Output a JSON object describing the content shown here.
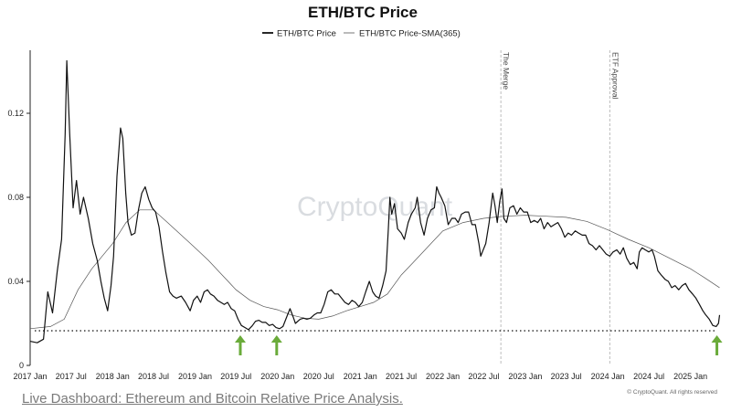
{
  "chart_data": {
    "type": "line",
    "title": "ETH/BTC Price",
    "legend": {
      "placement": "top-center"
    },
    "series": [
      {
        "name": "ETH/BTC Price",
        "style": "solid",
        "points": [
          [
            "2017-01-01",
            0.0115
          ],
          [
            "2017-02-01",
            0.0108
          ],
          [
            "2017-03-01",
            0.0125
          ],
          [
            "2017-03-20",
            0.035
          ],
          [
            "2017-04-10",
            0.025
          ],
          [
            "2017-05-01",
            0.045
          ],
          [
            "2017-05-20",
            0.06
          ],
          [
            "2017-06-05",
            0.11
          ],
          [
            "2017-06-12",
            0.145
          ],
          [
            "2017-06-25",
            0.11
          ],
          [
            "2017-07-10",
            0.075
          ],
          [
            "2017-07-25",
            0.088
          ],
          [
            "2017-08-10",
            0.072
          ],
          [
            "2017-08-25",
            0.08
          ],
          [
            "2017-09-15",
            0.07
          ],
          [
            "2017-10-05",
            0.058
          ],
          [
            "2017-10-25",
            0.05
          ],
          [
            "2017-11-10",
            0.04
          ],
          [
            "2017-11-25",
            0.032
          ],
          [
            "2017-12-10",
            0.026
          ],
          [
            "2017-12-25",
            0.038
          ],
          [
            "2018-01-05",
            0.052
          ],
          [
            "2018-01-20",
            0.09
          ],
          [
            "2018-02-05",
            0.113
          ],
          [
            "2018-02-15",
            0.108
          ],
          [
            "2018-02-28",
            0.082
          ],
          [
            "2018-03-10",
            0.068
          ],
          [
            "2018-03-25",
            0.062
          ],
          [
            "2018-04-10",
            0.063
          ],
          [
            "2018-04-25",
            0.074
          ],
          [
            "2018-05-10",
            0.082
          ],
          [
            "2018-05-25",
            0.085
          ],
          [
            "2018-06-10",
            0.079
          ],
          [
            "2018-06-25",
            0.075
          ],
          [
            "2018-07-10",
            0.073
          ],
          [
            "2018-07-25",
            0.066
          ],
          [
            "2018-08-10",
            0.054
          ],
          [
            "2018-08-25",
            0.044
          ],
          [
            "2018-09-10",
            0.035
          ],
          [
            "2018-09-25",
            0.033
          ],
          [
            "2018-10-10",
            0.032
          ],
          [
            "2018-11-01",
            0.033
          ],
          [
            "2018-11-20",
            0.03
          ],
          [
            "2018-12-10",
            0.026
          ],
          [
            "2018-12-25",
            0.031
          ],
          [
            "2019-01-10",
            0.033
          ],
          [
            "2019-01-25",
            0.03
          ],
          [
            "2019-02-10",
            0.035
          ],
          [
            "2019-02-25",
            0.036
          ],
          [
            "2019-03-10",
            0.034
          ],
          [
            "2019-03-25",
            0.033
          ],
          [
            "2019-04-10",
            0.031
          ],
          [
            "2019-04-25",
            0.03
          ],
          [
            "2019-05-10",
            0.029
          ],
          [
            "2019-05-25",
            0.03
          ],
          [
            "2019-06-10",
            0.027
          ],
          [
            "2019-06-25",
            0.026
          ],
          [
            "2019-07-10",
            0.022
          ],
          [
            "2019-07-25",
            0.019
          ],
          [
            "2019-08-10",
            0.018
          ],
          [
            "2019-08-25",
            0.017
          ],
          [
            "2019-09-10",
            0.0188
          ],
          [
            "2019-09-25",
            0.021
          ],
          [
            "2019-10-10",
            0.0215
          ],
          [
            "2019-10-25",
            0.0205
          ],
          [
            "2019-11-10",
            0.0205
          ],
          [
            "2019-11-25",
            0.019
          ],
          [
            "2019-12-10",
            0.0195
          ],
          [
            "2019-12-25",
            0.018
          ],
          [
            "2020-01-10",
            0.0175
          ],
          [
            "2020-01-25",
            0.0185
          ],
          [
            "2020-02-10",
            0.023
          ],
          [
            "2020-02-25",
            0.027
          ],
          [
            "2020-03-10",
            0.023
          ],
          [
            "2020-03-20",
            0.02
          ],
          [
            "2020-04-10",
            0.022
          ],
          [
            "2020-04-25",
            0.0225
          ],
          [
            "2020-05-10",
            0.022
          ],
          [
            "2020-05-25",
            0.0225
          ],
          [
            "2020-06-10",
            0.024
          ],
          [
            "2020-06-25",
            0.025
          ],
          [
            "2020-07-10",
            0.025
          ],
          [
            "2020-07-25",
            0.029
          ],
          [
            "2020-08-10",
            0.035
          ],
          [
            "2020-08-25",
            0.036
          ],
          [
            "2020-09-10",
            0.034
          ],
          [
            "2020-09-25",
            0.034
          ],
          [
            "2020-10-10",
            0.032
          ],
          [
            "2020-10-25",
            0.03
          ],
          [
            "2020-11-10",
            0.029
          ],
          [
            "2020-11-25",
            0.031
          ],
          [
            "2020-12-10",
            0.03
          ],
          [
            "2020-12-25",
            0.028
          ],
          [
            "2021-01-10",
            0.03
          ],
          [
            "2021-01-25",
            0.035
          ],
          [
            "2021-02-10",
            0.04
          ],
          [
            "2021-02-25",
            0.035
          ],
          [
            "2021-03-10",
            0.033
          ],
          [
            "2021-03-25",
            0.032
          ],
          [
            "2021-04-10",
            0.038
          ],
          [
            "2021-04-25",
            0.045
          ],
          [
            "2021-05-05",
            0.065
          ],
          [
            "2021-05-12",
            0.08
          ],
          [
            "2021-05-20",
            0.072
          ],
          [
            "2021-06-01",
            0.077
          ],
          [
            "2021-06-15",
            0.065
          ],
          [
            "2021-07-01",
            0.063
          ],
          [
            "2021-07-15",
            0.06
          ],
          [
            "2021-08-01",
            0.068
          ],
          [
            "2021-08-15",
            0.072
          ],
          [
            "2021-09-01",
            0.075
          ],
          [
            "2021-09-10",
            0.08
          ],
          [
            "2021-09-25",
            0.068
          ],
          [
            "2021-10-10",
            0.062
          ],
          [
            "2021-10-25",
            0.07
          ],
          [
            "2021-11-10",
            0.074
          ],
          [
            "2021-11-25",
            0.075
          ],
          [
            "2021-12-05",
            0.085
          ],
          [
            "2021-12-15",
            0.082
          ],
          [
            "2021-12-25",
            0.08
          ],
          [
            "2022-01-10",
            0.076
          ],
          [
            "2022-01-25",
            0.067
          ],
          [
            "2022-02-10",
            0.07
          ],
          [
            "2022-02-25",
            0.07
          ],
          [
            "2022-03-10",
            0.068
          ],
          [
            "2022-03-25",
            0.072
          ],
          [
            "2022-04-10",
            0.073
          ],
          [
            "2022-04-25",
            0.073
          ],
          [
            "2022-05-10",
            0.067
          ],
          [
            "2022-05-25",
            0.067
          ],
          [
            "2022-06-10",
            0.058
          ],
          [
            "2022-06-18",
            0.052
          ],
          [
            "2022-06-25",
            0.054
          ],
          [
            "2022-07-10",
            0.058
          ],
          [
            "2022-07-25",
            0.068
          ],
          [
            "2022-08-10",
            0.082
          ],
          [
            "2022-08-20",
            0.076
          ],
          [
            "2022-08-30",
            0.068
          ],
          [
            "2022-09-10",
            0.078
          ],
          [
            "2022-09-20",
            0.084
          ],
          [
            "2022-09-28",
            0.07
          ],
          [
            "2022-10-10",
            0.068
          ],
          [
            "2022-10-25",
            0.075
          ],
          [
            "2022-11-10",
            0.076
          ],
          [
            "2022-11-25",
            0.072
          ],
          [
            "2022-12-10",
            0.075
          ],
          [
            "2022-12-25",
            0.073
          ],
          [
            "2023-01-10",
            0.073
          ],
          [
            "2023-01-25",
            0.068
          ],
          [
            "2023-02-10",
            0.069
          ],
          [
            "2023-02-25",
            0.068
          ],
          [
            "2023-03-10",
            0.07
          ],
          [
            "2023-03-25",
            0.065
          ],
          [
            "2023-04-10",
            0.068
          ],
          [
            "2023-04-25",
            0.066
          ],
          [
            "2023-05-10",
            0.067
          ],
          [
            "2023-05-25",
            0.068
          ],
          [
            "2023-06-10",
            0.065
          ],
          [
            "2023-06-25",
            0.061
          ],
          [
            "2023-07-10",
            0.063
          ],
          [
            "2023-07-25",
            0.062
          ],
          [
            "2023-08-10",
            0.064
          ],
          [
            "2023-08-25",
            0.063
          ],
          [
            "2023-09-10",
            0.062
          ],
          [
            "2023-09-25",
            0.062
          ],
          [
            "2023-10-10",
            0.058
          ],
          [
            "2023-10-25",
            0.057
          ],
          [
            "2023-11-10",
            0.055
          ],
          [
            "2023-11-25",
            0.057
          ],
          [
            "2023-12-10",
            0.055
          ],
          [
            "2023-12-25",
            0.053
          ],
          [
            "2024-01-10",
            0.052
          ],
          [
            "2024-01-25",
            0.054
          ],
          [
            "2024-02-10",
            0.055
          ],
          [
            "2024-02-25",
            0.053
          ],
          [
            "2024-03-10",
            0.056
          ],
          [
            "2024-03-25",
            0.051
          ],
          [
            "2024-04-10",
            0.048
          ],
          [
            "2024-04-25",
            0.049
          ],
          [
            "2024-05-10",
            0.046
          ],
          [
            "2024-05-20",
            0.054
          ],
          [
            "2024-06-01",
            0.056
          ],
          [
            "2024-06-15",
            0.055
          ],
          [
            "2024-07-01",
            0.054
          ],
          [
            "2024-07-15",
            0.055
          ],
          [
            "2024-07-25",
            0.052
          ],
          [
            "2024-08-10",
            0.045
          ],
          [
            "2024-08-25",
            0.043
          ],
          [
            "2024-09-10",
            0.041
          ],
          [
            "2024-09-25",
            0.04
          ],
          [
            "2024-10-10",
            0.037
          ],
          [
            "2024-10-25",
            0.038
          ],
          [
            "2024-11-10",
            0.036
          ],
          [
            "2024-11-25",
            0.038
          ],
          [
            "2024-12-10",
            0.039
          ],
          [
            "2024-12-25",
            0.036
          ],
          [
            "2025-01-10",
            0.034
          ],
          [
            "2025-01-25",
            0.032
          ],
          [
            "2025-02-10",
            0.029
          ],
          [
            "2025-02-25",
            0.026
          ],
          [
            "2025-03-10",
            0.024
          ],
          [
            "2025-03-25",
            0.022
          ],
          [
            "2025-04-10",
            0.019
          ],
          [
            "2025-04-25",
            0.0185
          ],
          [
            "2025-05-05",
            0.02
          ],
          [
            "2025-05-10",
            0.024
          ]
        ]
      },
      {
        "name": "ETH/BTC Price-SMA(365)",
        "style": "thin",
        "points": [
          [
            "2017-01-01",
            0.0175
          ],
          [
            "2017-04-01",
            0.0185
          ],
          [
            "2017-06-01",
            0.022
          ],
          [
            "2017-08-01",
            0.036
          ],
          [
            "2017-10-01",
            0.046
          ],
          [
            "2018-01-01",
            0.058
          ],
          [
            "2018-03-01",
            0.068
          ],
          [
            "2018-05-01",
            0.074
          ],
          [
            "2018-07-01",
            0.074
          ],
          [
            "2018-09-01",
            0.068
          ],
          [
            "2018-11-01",
            0.062
          ],
          [
            "2019-01-01",
            0.056
          ],
          [
            "2019-03-01",
            0.05
          ],
          [
            "2019-05-01",
            0.043
          ],
          [
            "2019-07-01",
            0.036
          ],
          [
            "2019-09-01",
            0.031
          ],
          [
            "2019-11-01",
            0.028
          ],
          [
            "2020-01-01",
            0.0265
          ],
          [
            "2020-03-01",
            0.024
          ],
          [
            "2020-05-01",
            0.0225
          ],
          [
            "2020-07-01",
            0.022
          ],
          [
            "2020-09-01",
            0.0235
          ],
          [
            "2020-11-01",
            0.026
          ],
          [
            "2021-01-01",
            0.028
          ],
          [
            "2021-03-01",
            0.03
          ],
          [
            "2021-05-01",
            0.034
          ],
          [
            "2021-07-01",
            0.043
          ],
          [
            "2021-09-01",
            0.05
          ],
          [
            "2021-11-01",
            0.057
          ],
          [
            "2022-01-01",
            0.064
          ],
          [
            "2022-04-01",
            0.068
          ],
          [
            "2022-07-01",
            0.07
          ],
          [
            "2022-10-01",
            0.071
          ],
          [
            "2023-01-01",
            0.0715
          ],
          [
            "2023-04-01",
            0.071
          ],
          [
            "2023-07-01",
            0.0705
          ],
          [
            "2023-10-01",
            0.0685
          ],
          [
            "2024-01-01",
            0.0645
          ],
          [
            "2024-04-01",
            0.06
          ],
          [
            "2024-07-01",
            0.056
          ],
          [
            "2024-10-01",
            0.051
          ],
          [
            "2025-01-01",
            0.046
          ],
          [
            "2025-03-01",
            0.042
          ],
          [
            "2025-05-10",
            0.037
          ]
        ]
      }
    ],
    "support_level": 0.0165,
    "arrows_at": [
      "2019-07-20",
      "2019-12-28",
      "2025-04-28"
    ],
    "events": [
      {
        "date": "2022-09-15",
        "label": "The Merge"
      },
      {
        "date": "2024-01-10",
        "label": "ETF Approval"
      }
    ],
    "x_range": [
      "2017-01-01",
      "2025-05-20"
    ],
    "x_ticks": [
      [
        "2017-01-01",
        "2017 Jan"
      ],
      [
        "2017-07-01",
        "2017 Jul"
      ],
      [
        "2018-01-01",
        "2018 Jan"
      ],
      [
        "2018-07-01",
        "2018 Jul"
      ],
      [
        "2019-01-01",
        "2019 Jan"
      ],
      [
        "2019-07-01",
        "2019 Jul"
      ],
      [
        "2020-01-01",
        "2020 Jan"
      ],
      [
        "2020-07-01",
        "2020 Jul"
      ],
      [
        "2021-01-01",
        "2021 Jan"
      ],
      [
        "2021-07-01",
        "2021 Jul"
      ],
      [
        "2022-01-01",
        "2022 Jan"
      ],
      [
        "2022-07-01",
        "2022 Jul"
      ],
      [
        "2023-01-01",
        "2023 Jan"
      ],
      [
        "2023-07-01",
        "2023 Jul"
      ],
      [
        "2024-01-01",
        "2024 Jan"
      ],
      [
        "2024-07-01",
        "2024 Jul"
      ],
      [
        "2025-01-01",
        "2025 Jan"
      ]
    ],
    "ylim": [
      0,
      0.15
    ],
    "y_ticks": [
      [
        "0",
        "0"
      ],
      [
        "0.04",
        "0.04"
      ],
      [
        "0.08",
        "0.08"
      ],
      [
        "0.12",
        "0.12"
      ]
    ],
    "grid": false
  },
  "watermark": "CryptoQuant",
  "copyright": "© CryptoQuant. All rights reserved",
  "colors": {
    "price": "#111111",
    "sma": "#555555",
    "arrow": "#6aab3a",
    "event_line": "#b5b5b5",
    "support": "#222222"
  },
  "footer": {
    "link_text": "Live Dashboard: Ethereum and Bitcoin Relative Price Analysis."
  }
}
